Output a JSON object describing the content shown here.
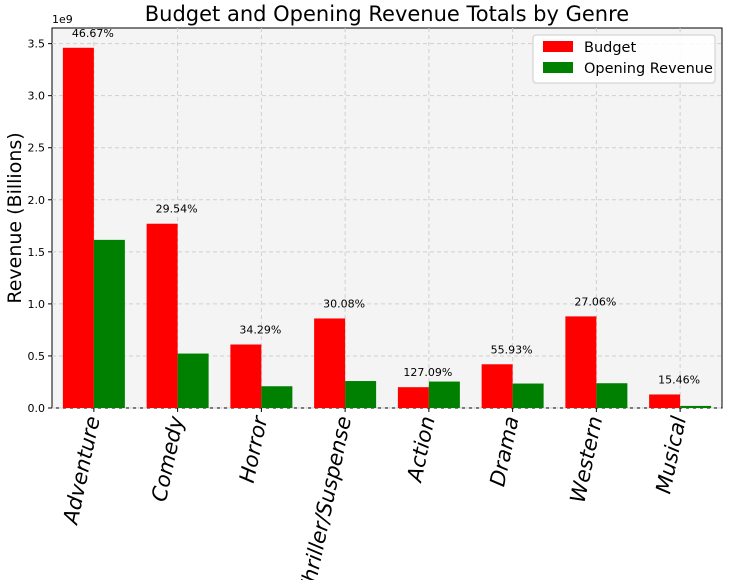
{
  "chart_data": {
    "type": "bar",
    "title": "Budget and Opening Revenue Totals by Genre",
    "xlabel": "",
    "ylabel": "Revenue (Billions)",
    "y_offset_label": "1e9",
    "ylim": [
      0,
      3.65
    ],
    "yticks": [
      0.0,
      0.5,
      1.0,
      1.5,
      2.0,
      2.5,
      3.0,
      3.5
    ],
    "ytick_labels": [
      "0.0",
      "0.5",
      "1.0",
      "1.5",
      "2.0",
      "2.5",
      "3.0",
      "3.5"
    ],
    "grid": true,
    "legend_position": "top-right",
    "categories": [
      "Adventure",
      "Comedy",
      "Horror",
      "Thriller/Suspense",
      "Action",
      "Drama",
      "Western",
      "Musical"
    ],
    "series": [
      {
        "name": "Budget",
        "color": "#ff0000",
        "values": [
          3.46,
          1.77,
          0.61,
          0.86,
          0.2,
          0.42,
          0.88,
          0.13
        ]
      },
      {
        "name": "Opening Revenue",
        "color": "#008000",
        "values": [
          1.615,
          0.523,
          0.209,
          0.259,
          0.254,
          0.235,
          0.238,
          0.02
        ]
      }
    ],
    "annotations": [
      "46.67%",
      "29.54%",
      "34.29%",
      "30.08%",
      "127.09%",
      "55.93%",
      "27.06%",
      "15.46%"
    ]
  }
}
